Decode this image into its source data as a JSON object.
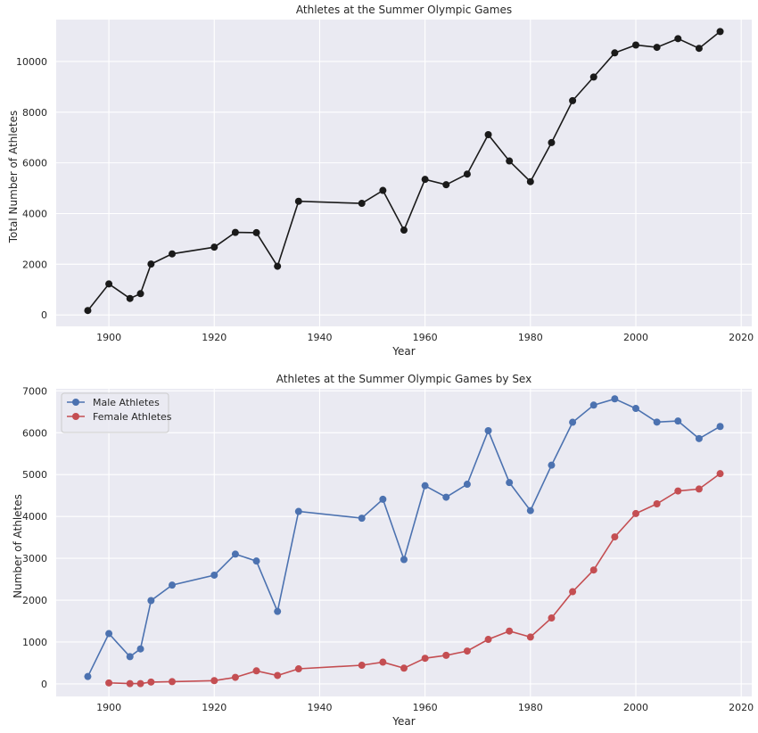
{
  "chart_data": [
    {
      "type": "line",
      "title": "Athletes at the Summer Olympic Games",
      "xlabel": "Year",
      "ylabel": "Total Number of Athletes",
      "xlim": [
        1890,
        2022
      ],
      "ylim": [
        -450,
        11650
      ],
      "xticks": [
        1900,
        1920,
        1940,
        1960,
        1980,
        2000,
        2020
      ],
      "yticks": [
        0,
        2000,
        4000,
        6000,
        8000,
        10000
      ],
      "grid": true,
      "series": [
        {
          "color": "#1a1a1a",
          "x": [
            1896,
            1900,
            1904,
            1906,
            1908,
            1912,
            1920,
            1924,
            1928,
            1932,
            1936,
            1948,
            1952,
            1956,
            1960,
            1964,
            1968,
            1972,
            1976,
            1980,
            1984,
            1988,
            1992,
            1996,
            2000,
            2004,
            2008,
            2012,
            2016
          ],
          "y": [
            176,
            1224,
            650,
            841,
            2008,
            2409,
            2675,
            3256,
            3246,
            1922,
            4484,
            4402,
            4912,
            3347,
            5348,
            5137,
            5558,
            7113,
            6073,
            5259,
            6799,
            8453,
            9386,
            10339,
            10647,
            10557,
            10899,
            10517,
            11180
          ]
        }
      ]
    },
    {
      "type": "line",
      "title": "Athletes at the Summer Olympic Games by Sex",
      "xlabel": "Year",
      "ylabel": "Number of Athletes",
      "xlim": [
        1890,
        2022
      ],
      "ylim": [
        -300,
        7050
      ],
      "xticks": [
        1900,
        1920,
        1940,
        1960,
        1980,
        2000,
        2020
      ],
      "yticks": [
        0,
        1000,
        2000,
        3000,
        4000,
        5000,
        6000,
        7000
      ],
      "grid": true,
      "legend": "top-left",
      "series": [
        {
          "name": "Male Athletes",
          "color": "#4c72b0",
          "x": [
            1896,
            1900,
            1904,
            1906,
            1908,
            1912,
            1920,
            1924,
            1928,
            1932,
            1936,
            1948,
            1952,
            1956,
            1960,
            1964,
            1968,
            1972,
            1976,
            1980,
            1984,
            1988,
            1992,
            1996,
            2000,
            2004,
            2008,
            2012,
            2016
          ],
          "y": [
            176,
            1201,
            650,
            835,
            1990,
            2360,
            2598,
            3100,
            2935,
            1731,
            4120,
            3958,
            4410,
            2970,
            4735,
            4460,
            4770,
            6050,
            4810,
            4140,
            5225,
            6250,
            6660,
            6810,
            6580,
            6255,
            6280,
            5860,
            6150
          ]
        },
        {
          "name": "Female Athletes",
          "color": "#c44e52",
          "x": [
            1900,
            1904,
            1906,
            1908,
            1912,
            1920,
            1924,
            1928,
            1932,
            1936,
            1948,
            1952,
            1956,
            1960,
            1964,
            1968,
            1972,
            1976,
            1980,
            1984,
            1988,
            1992,
            1996,
            2000,
            2004,
            2008,
            2012,
            2016
          ],
          "y": [
            23,
            6,
            6,
            44,
            53,
            78,
            156,
            312,
            201,
            360,
            445,
            519,
            376,
            612,
            683,
            785,
            1063,
            1261,
            1119,
            1574,
            2202,
            2721,
            3512,
            4069,
            4302,
            4609,
            4655,
            5023
          ]
        }
      ]
    }
  ]
}
